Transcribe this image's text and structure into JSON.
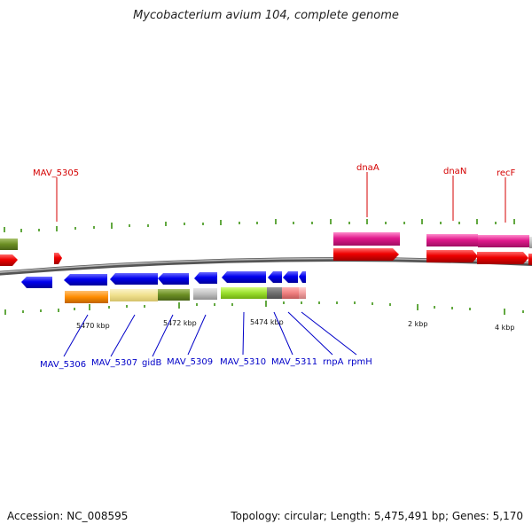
{
  "title": "Mycobacterium avium 104, complete genome",
  "footer": {
    "accession": "Accession: NC_008595",
    "summary": "Topology: circular; Length: 5,475,491 bp; Genes: 5,170"
  },
  "ticks": {
    "labels": [
      "5470 kbp",
      "5472 kbp",
      "5474 kbp",
      "2 kbp",
      "4 kbp"
    ]
  },
  "genes": {
    "forward": [
      "dnaA",
      "dnaN",
      "recF"
    ],
    "reverse": [
      "MAV_5306",
      "MAV_5307",
      "gidB",
      "MAV_5309",
      "MAV_5310",
      "MAV_5311",
      "rnpA",
      "rpmH"
    ],
    "top_left": "MAV_5305"
  },
  "colors": {
    "cds": "#e00000",
    "cds_reverse": "#0000e0",
    "gene_forward": "#e0198c",
    "tick": "#2e8b00",
    "backbone": "#7a7a7a",
    "label_forward": "#d40000",
    "label_reverse": "#0000c8"
  }
}
